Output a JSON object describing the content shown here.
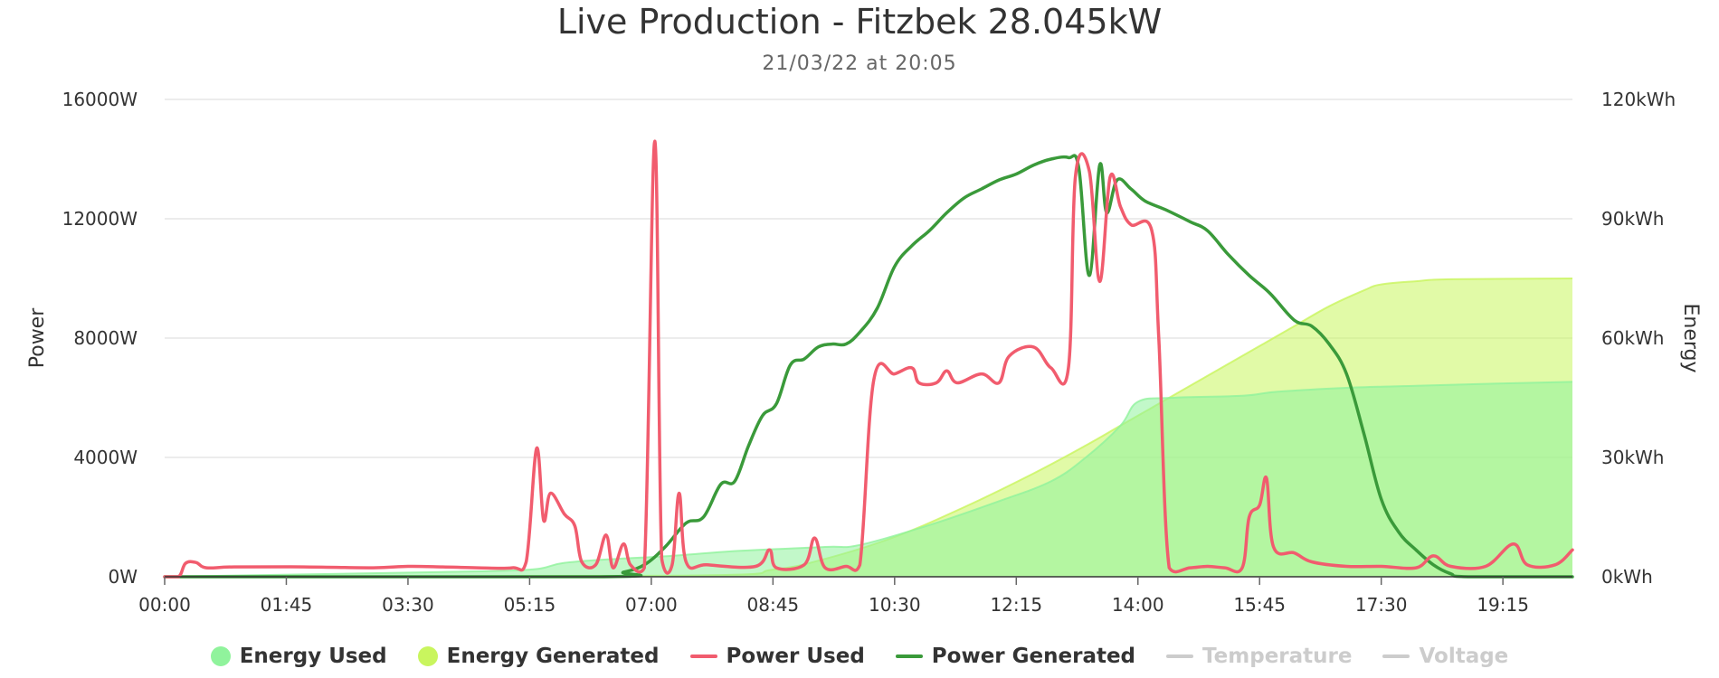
{
  "header": {
    "title": "Live Production - Fitzbek 28.045kW",
    "subtitle": "21/03/22 at 20:05"
  },
  "legend": {
    "items": [
      {
        "label": "Energy Used",
        "symbol": "dot",
        "color": "#90f39c",
        "visible": true
      },
      {
        "label": "Energy Generated",
        "symbol": "dot",
        "color": "#c9f55e",
        "visible": true
      },
      {
        "label": "Power Used",
        "symbol": "line",
        "color": "#f15c6e",
        "visible": true
      },
      {
        "label": "Power Generated",
        "symbol": "line",
        "color": "#3a9a3a",
        "visible": true
      },
      {
        "label": "Temperature",
        "symbol": "line",
        "color": "#cccccc",
        "visible": false
      },
      {
        "label": "Voltage",
        "symbol": "line",
        "color": "#cccccc",
        "visible": false
      }
    ]
  },
  "chart_data": {
    "type": "line",
    "title": "Live Production - Fitzbek 28.045kW",
    "subtitle": "21/03/22 at 20:05",
    "x_unit": "hours",
    "x_range": [
      0,
      20.25
    ],
    "x_ticks": [
      0,
      1.75,
      3.5,
      5.25,
      7,
      8.75,
      10.5,
      12.25,
      14,
      15.75,
      17.5,
      19.25
    ],
    "x_tick_labels": [
      "00:00",
      "01:45",
      "03:30",
      "05:15",
      "07:00",
      "08:45",
      "10:30",
      "12:15",
      "14:00",
      "15:45",
      "17:30",
      "19:15"
    ],
    "y_left": {
      "title": "Power",
      "range": [
        0,
        16000
      ],
      "ticks": [
        0,
        4000,
        8000,
        12000,
        16000
      ],
      "tick_labels": [
        "0W",
        "4000W",
        "8000W",
        "12000W",
        "16000W"
      ]
    },
    "y_right": {
      "title": "Energy",
      "range": [
        0,
        120
      ],
      "ticks": [
        0,
        30,
        60,
        90,
        120
      ],
      "tick_labels": [
        "0kWh",
        "30kWh",
        "60kWh",
        "90kWh",
        "120kWh"
      ]
    },
    "grid": true,
    "legend_position": "bottom",
    "series": [
      {
        "name": "Energy Generated",
        "type": "area",
        "axis": "right",
        "color": "#c9f55e",
        "points": [
          [
            0,
            0
          ],
          [
            7.5,
            0.3
          ],
          [
            8.75,
            1.8
          ],
          [
            9.5,
            4.5
          ],
          [
            10.5,
            10
          ],
          [
            11.5,
            17.5
          ],
          [
            12.5,
            26
          ],
          [
            13.25,
            33
          ],
          [
            13.75,
            38
          ],
          [
            14.25,
            43
          ],
          [
            14.75,
            48
          ],
          [
            15.25,
            53
          ],
          [
            15.75,
            58
          ],
          [
            16.25,
            63
          ],
          [
            16.75,
            68
          ],
          [
            17.25,
            72
          ],
          [
            17.5,
            73.5
          ],
          [
            18,
            74.3
          ],
          [
            18.5,
            74.8
          ],
          [
            20.25,
            75
          ]
        ]
      },
      {
        "name": "Energy Used",
        "type": "area",
        "axis": "right",
        "color": "#90f39c",
        "points": [
          [
            0,
            0
          ],
          [
            2,
            0.6
          ],
          [
            4,
            1.2
          ],
          [
            5.25,
            1.8
          ],
          [
            5.75,
            3.5
          ],
          [
            6.5,
            4.5
          ],
          [
            7.25,
            5.2
          ],
          [
            8.25,
            6.5
          ],
          [
            9.5,
            7.5
          ],
          [
            10,
            8
          ],
          [
            11,
            13
          ],
          [
            12,
            19
          ],
          [
            12.75,
            24
          ],
          [
            13.25,
            30
          ],
          [
            13.75,
            38
          ],
          [
            14,
            44
          ],
          [
            14.5,
            45
          ],
          [
            15.5,
            45.5
          ],
          [
            16,
            46.5
          ],
          [
            17,
            47.5
          ],
          [
            18,
            48
          ],
          [
            19,
            48.5
          ],
          [
            20.25,
            49
          ]
        ]
      },
      {
        "name": "Power Generated",
        "type": "line",
        "axis": "left",
        "color": "#3a9a3a",
        "points": [
          [
            0,
            0
          ],
          [
            6.25,
            0
          ],
          [
            6.6,
            150
          ],
          [
            6.9,
            400
          ],
          [
            7.2,
            1000
          ],
          [
            7.5,
            1800
          ],
          [
            7.75,
            2000
          ],
          [
            8,
            3100
          ],
          [
            8.2,
            3200
          ],
          [
            8.4,
            4400
          ],
          [
            8.6,
            5400
          ],
          [
            8.8,
            5800
          ],
          [
            9,
            7100
          ],
          [
            9.2,
            7300
          ],
          [
            9.4,
            7700
          ],
          [
            9.6,
            7800
          ],
          [
            9.8,
            7800
          ],
          [
            10,
            8200
          ],
          [
            10.25,
            9000
          ],
          [
            10.5,
            10400
          ],
          [
            10.75,
            11100
          ],
          [
            11,
            11600
          ],
          [
            11.25,
            12200
          ],
          [
            11.5,
            12700
          ],
          [
            11.75,
            13000
          ],
          [
            12,
            13300
          ],
          [
            12.25,
            13500
          ],
          [
            12.5,
            13800
          ],
          [
            12.75,
            14000
          ],
          [
            13,
            14050
          ],
          [
            13.15,
            13700
          ],
          [
            13.3,
            10100
          ],
          [
            13.45,
            13800
          ],
          [
            13.55,
            12200
          ],
          [
            13.7,
            13300
          ],
          [
            13.9,
            13000
          ],
          [
            14.1,
            12600
          ],
          [
            14.4,
            12300
          ],
          [
            14.75,
            11900
          ],
          [
            15,
            11600
          ],
          [
            15.3,
            10800
          ],
          [
            15.6,
            10100
          ],
          [
            15.9,
            9500
          ],
          [
            16.25,
            8600
          ],
          [
            16.5,
            8400
          ],
          [
            16.75,
            7800
          ],
          [
            17,
            6800
          ],
          [
            17.25,
            4800
          ],
          [
            17.5,
            2600
          ],
          [
            17.75,
            1500
          ],
          [
            18,
            900
          ],
          [
            18.25,
            400
          ],
          [
            18.5,
            100
          ],
          [
            18.75,
            0
          ],
          [
            20.25,
            0
          ]
        ]
      },
      {
        "name": "Power Used",
        "type": "line",
        "axis": "left",
        "color": "#f15c6e",
        "points": [
          [
            0,
            0
          ],
          [
            0.2,
            0
          ],
          [
            0.3,
            450
          ],
          [
            0.45,
            480
          ],
          [
            0.6,
            300
          ],
          [
            1,
            330
          ],
          [
            2,
            330
          ],
          [
            3,
            300
          ],
          [
            3.5,
            350
          ],
          [
            4,
            330
          ],
          [
            4.5,
            300
          ],
          [
            5,
            300
          ],
          [
            5.2,
            500
          ],
          [
            5.35,
            4300
          ],
          [
            5.45,
            1900
          ],
          [
            5.55,
            2800
          ],
          [
            5.75,
            2100
          ],
          [
            5.9,
            1700
          ],
          [
            6,
            500
          ],
          [
            6.2,
            400
          ],
          [
            6.35,
            1400
          ],
          [
            6.45,
            300
          ],
          [
            6.6,
            1100
          ],
          [
            6.7,
            400
          ],
          [
            6.9,
            300
          ],
          [
            7.05,
            14600
          ],
          [
            7.15,
            600
          ],
          [
            7.3,
            400
          ],
          [
            7.4,
            2800
          ],
          [
            7.5,
            500
          ],
          [
            7.8,
            400
          ],
          [
            8.5,
            350
          ],
          [
            8.7,
            900
          ],
          [
            8.8,
            300
          ],
          [
            9.2,
            400
          ],
          [
            9.35,
            1300
          ],
          [
            9.5,
            300
          ],
          [
            9.8,
            350
          ],
          [
            10,
            400
          ],
          [
            10.2,
            6600
          ],
          [
            10.5,
            6800
          ],
          [
            10.75,
            7000
          ],
          [
            10.85,
            6500
          ],
          [
            11.1,
            6500
          ],
          [
            11.25,
            6900
          ],
          [
            11.4,
            6500
          ],
          [
            11.75,
            6800
          ],
          [
            12,
            6500
          ],
          [
            12.15,
            7400
          ],
          [
            12.5,
            7700
          ],
          [
            12.75,
            7000
          ],
          [
            13,
            7000
          ],
          [
            13.1,
            13400
          ],
          [
            13.3,
            13600
          ],
          [
            13.45,
            9900
          ],
          [
            13.6,
            13400
          ],
          [
            13.75,
            12400
          ],
          [
            13.9,
            11800
          ],
          [
            14.2,
            11600
          ],
          [
            14.3,
            8000
          ],
          [
            14.45,
            300
          ],
          [
            14.75,
            300
          ],
          [
            15,
            350
          ],
          [
            15.25,
            300
          ],
          [
            15.5,
            300
          ],
          [
            15.6,
            2000
          ],
          [
            15.75,
            2400
          ],
          [
            15.85,
            3300
          ],
          [
            15.95,
            1000
          ],
          [
            16.25,
            800
          ],
          [
            16.5,
            500
          ],
          [
            17,
            350
          ],
          [
            17.5,
            350
          ],
          [
            18,
            300
          ],
          [
            18.25,
            700
          ],
          [
            18.5,
            350
          ],
          [
            19,
            350
          ],
          [
            19.4,
            1100
          ],
          [
            19.6,
            400
          ],
          [
            20,
            400
          ],
          [
            20.25,
            900
          ]
        ]
      }
    ]
  }
}
